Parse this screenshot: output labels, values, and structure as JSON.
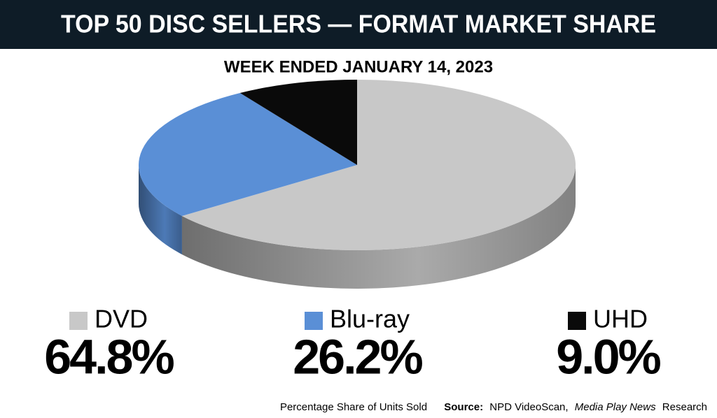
{
  "chart_data": {
    "type": "pie",
    "title": "TOP 50 DISC SELLERS — FORMAT MARKET SHARE",
    "subtitle": "WEEK ENDED JANUARY 14, 2023",
    "categories": [
      "DVD",
      "Blu-ray",
      "UHD"
    ],
    "values": [
      64.8,
      26.2,
      9.0
    ],
    "value_labels": [
      "64.8%",
      "26.2%",
      "9.0%"
    ],
    "colors": [
      "#c8c8c8",
      "#5a8fd6",
      "#0a0a0a"
    ],
    "note": "Percentage Share of Units Sold",
    "source": {
      "label": "Source:",
      "text": "NPD VideoScan,",
      "publication": "Media Play News",
      "suffix": "Research"
    }
  }
}
